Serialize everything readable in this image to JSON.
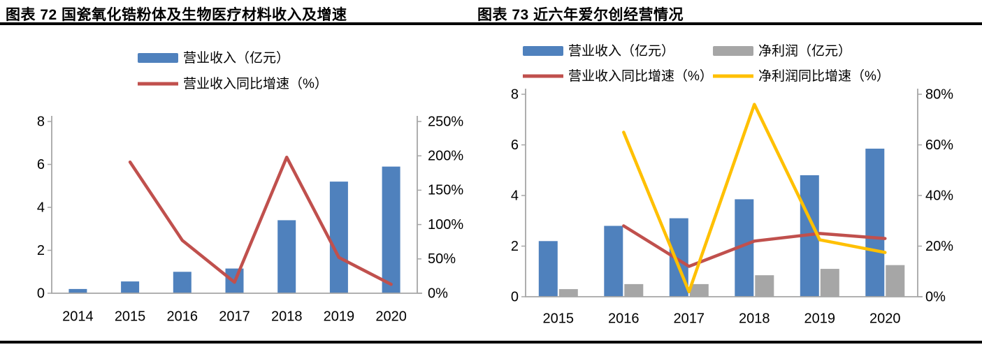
{
  "page": {
    "titles": [
      {
        "text": "图表 72 国瓷氧化锆粉体及生物医疗材料收入及增速"
      },
      {
        "text": "图表 73 近六年爱尔创经营情况"
      }
    ]
  },
  "chart_data": [
    {
      "type": "bar+line",
      "title": "图表 72 国瓷氧化锆粉体及生物医疗材料收入及增速",
      "categories": [
        "2014",
        "2015",
        "2016",
        "2017",
        "2018",
        "2019",
        "2020"
      ],
      "series": [
        {
          "name": "营业收入（亿元）",
          "type": "bar",
          "axis": "left",
          "color": "#4F81BD",
          "values": [
            0.2,
            0.55,
            1.0,
            1.15,
            3.4,
            5.2,
            5.9
          ]
        },
        {
          "name": "营业收入同比增速（%）",
          "type": "line",
          "axis": "right",
          "color": "#C0504D",
          "values": [
            null,
            191,
            77,
            16,
            198,
            52,
            13
          ]
        }
      ],
      "left_axis": {
        "min": 0,
        "max": 8,
        "ticks": [
          "0",
          "2",
          "4",
          "6",
          "8"
        ]
      },
      "right_axis": {
        "min": 0,
        "max": 250,
        "ticks": [
          "0%",
          "50%",
          "100%",
          "150%",
          "200%",
          "250%"
        ]
      },
      "legend_position": "top",
      "grid": false
    },
    {
      "type": "bar+line",
      "title": "图表 73 近六年爱尔创经营情况",
      "categories": [
        "2015",
        "2016",
        "2017",
        "2018",
        "2019",
        "2020"
      ],
      "series": [
        {
          "name": "营业收入（亿元）",
          "type": "bar",
          "axis": "left",
          "color": "#4F81BD",
          "values": [
            2.2,
            2.8,
            3.1,
            3.85,
            4.8,
            5.85
          ]
        },
        {
          "name": "净利润（亿元）",
          "type": "bar",
          "axis": "left",
          "color": "#A6A6A6",
          "values": [
            0.3,
            0.5,
            0.5,
            0.85,
            1.1,
            1.25
          ]
        },
        {
          "name": "营业收入同比增速（%）",
          "type": "line",
          "axis": "right",
          "color": "#C0504D",
          "values": [
            null,
            28,
            12,
            22,
            25,
            23
          ]
        },
        {
          "name": "净利润同比增速（%）",
          "type": "line",
          "axis": "right",
          "color": "#FFC000",
          "values": [
            null,
            65,
            2,
            76,
            22.5,
            17.5
          ]
        }
      ],
      "left_axis": {
        "min": 0,
        "max": 8,
        "ticks": [
          "0",
          "2",
          "4",
          "6",
          "8"
        ]
      },
      "right_axis": {
        "min": 0,
        "max": 80,
        "ticks": [
          "0%",
          "20%",
          "40%",
          "60%",
          "80%"
        ]
      },
      "legend_position": "top",
      "grid": false
    }
  ],
  "colors": {
    "revenue_bar": "#4F81BD",
    "profit_bar": "#A6A6A6",
    "revenue_growth_line": "#C0504D",
    "profit_growth_line": "#FFC000",
    "axis": "#A6A6A6",
    "rule": "#000000"
  }
}
